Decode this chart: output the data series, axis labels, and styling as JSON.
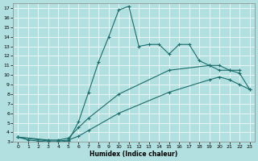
{
  "background_color": "#b2e0e0",
  "grid_color": "#ffffff",
  "line_color": "#1a6b6b",
  "xlabel": "Humidex (Indice chaleur)",
  "xlim": [
    -0.5,
    23.5
  ],
  "ylim": [
    3,
    17.5
  ],
  "xticks": [
    0,
    1,
    2,
    3,
    4,
    5,
    6,
    7,
    8,
    9,
    10,
    11,
    12,
    13,
    14,
    15,
    16,
    17,
    18,
    19,
    20,
    21,
    22,
    23
  ],
  "yticks": [
    3,
    4,
    5,
    6,
    7,
    8,
    9,
    10,
    11,
    12,
    13,
    14,
    15,
    16,
    17
  ],
  "curve1_x": [
    0,
    1,
    2,
    3,
    4,
    5,
    6,
    7,
    8,
    9,
    10,
    11,
    12,
    13,
    14,
    15,
    16,
    17,
    18,
    19,
    20,
    21,
    22
  ],
  "curve1_y": [
    3.5,
    3.2,
    3.1,
    3.0,
    3.0,
    3.1,
    5.1,
    8.2,
    11.4,
    14.0,
    16.8,
    17.2,
    13.0,
    13.2,
    13.2,
    12.2,
    13.2,
    13.2,
    11.5,
    11.0,
    10.5,
    10.5,
    10.5
  ],
  "curve2_x": [
    0,
    3,
    4,
    5,
    6,
    7,
    10,
    15,
    19,
    20,
    21,
    22,
    23
  ],
  "curve2_y": [
    3.5,
    3.2,
    3.2,
    3.4,
    4.5,
    5.5,
    8.0,
    10.5,
    11.0,
    11.0,
    10.5,
    10.2,
    8.5
  ],
  "curve3_x": [
    0,
    3,
    4,
    5,
    6,
    7,
    10,
    15,
    19,
    20,
    21,
    22,
    23
  ],
  "curve3_y": [
    3.5,
    3.1,
    3.1,
    3.2,
    3.6,
    4.2,
    6.0,
    8.2,
    9.5,
    9.8,
    9.5,
    9.0,
    8.5
  ]
}
